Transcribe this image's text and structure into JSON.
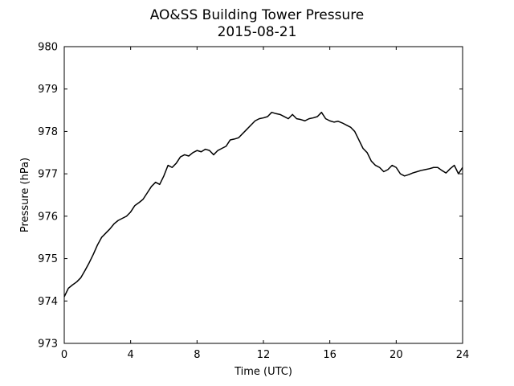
{
  "chart_data": {
    "type": "line",
    "title": "AO&SS Building Tower Pressure",
    "subtitle": "2015-08-21",
    "xlabel": "Time (UTC)",
    "ylabel": "Pressure (hPa)",
    "xlim": [
      0,
      24
    ],
    "ylim": [
      973,
      980
    ],
    "x_ticks": [
      0,
      4,
      8,
      12,
      16,
      20,
      24
    ],
    "y_ticks": [
      973,
      974,
      975,
      976,
      977,
      978,
      979,
      980
    ],
    "grid": false,
    "legend": "none",
    "line_color": "#000000",
    "series": [
      {
        "x": [
          0.0,
          0.25,
          0.5,
          0.75,
          1.0,
          1.25,
          1.5,
          1.75,
          2.0,
          2.25,
          2.5,
          2.75,
          3.0,
          3.25,
          3.5,
          3.75,
          4.0,
          4.25,
          4.5,
          4.75,
          5.0,
          5.25,
          5.5,
          5.75,
          6.0,
          6.25,
          6.5,
          6.75,
          7.0,
          7.25,
          7.5,
          7.75,
          8.0,
          8.25,
          8.5,
          8.75,
          9.0,
          9.25,
          9.5,
          9.75,
          10.0,
          10.25,
          10.5,
          10.75,
          11.0,
          11.25,
          11.5,
          11.75,
          12.0,
          12.25,
          12.5,
          12.75,
          13.0,
          13.25,
          13.5,
          13.75,
          14.0,
          14.25,
          14.5,
          14.75,
          15.0,
          15.25,
          15.5,
          15.75,
          16.0,
          16.25,
          16.5,
          16.75,
          17.0,
          17.25,
          17.5,
          17.75,
          18.0,
          18.25,
          18.5,
          18.75,
          19.0,
          19.25,
          19.5,
          19.75,
          20.0,
          20.25,
          20.5,
          20.75,
          21.0,
          21.25,
          21.5,
          21.75,
          22.0,
          22.25,
          22.5,
          22.75,
          23.0,
          23.25,
          23.5,
          23.75,
          24.0
        ],
        "y": [
          974.1,
          974.3,
          974.38,
          974.45,
          974.55,
          974.72,
          974.9,
          975.1,
          975.32,
          975.5,
          975.6,
          975.7,
          975.82,
          975.9,
          975.95,
          976.0,
          976.1,
          976.25,
          976.32,
          976.4,
          976.55,
          976.7,
          976.8,
          976.75,
          976.95,
          977.2,
          977.15,
          977.25,
          977.4,
          977.45,
          977.42,
          977.5,
          977.55,
          977.52,
          977.58,
          977.55,
          977.45,
          977.55,
          977.6,
          977.65,
          977.8,
          977.82,
          977.85,
          977.95,
          978.05,
          978.15,
          978.25,
          978.3,
          978.32,
          978.35,
          978.45,
          978.42,
          978.4,
          978.35,
          978.3,
          978.4,
          978.3,
          978.28,
          978.25,
          978.3,
          978.32,
          978.35,
          978.45,
          978.3,
          978.25,
          978.22,
          978.24,
          978.2,
          978.15,
          978.1,
          978.0,
          977.8,
          977.6,
          977.5,
          977.3,
          977.2,
          977.15,
          977.05,
          977.1,
          977.2,
          977.15,
          977.0,
          976.95,
          976.98,
          977.02,
          977.05,
          977.08,
          977.1,
          977.12,
          977.15,
          977.15,
          977.08,
          977.02,
          977.12,
          977.2,
          977.0,
          977.15
        ]
      }
    ]
  }
}
